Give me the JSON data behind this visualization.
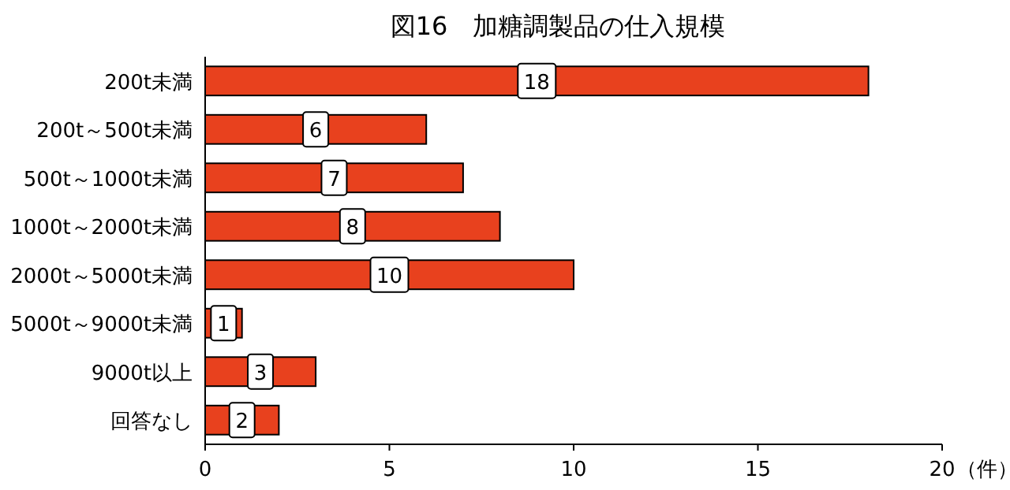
{
  "chart_data": {
    "type": "bar",
    "orientation": "horizontal",
    "title": "図16　加糖調製品の仕入規模",
    "xlabel": "（件）",
    "categories": [
      "200t未満",
      "200t～500t未満",
      "500t～1000t未満",
      "1000t～2000t未満",
      "2000t～5000t未満",
      "5000t～9000t未満",
      "9000t以上",
      "回答なし"
    ],
    "values": [
      18,
      6,
      7,
      8,
      10,
      1,
      3,
      2
    ],
    "color": "#e8411e",
    "xlim": [
      0,
      20
    ],
    "xticks": [
      0,
      5,
      10,
      15,
      20
    ],
    "data_labels": true,
    "grid": false
  }
}
